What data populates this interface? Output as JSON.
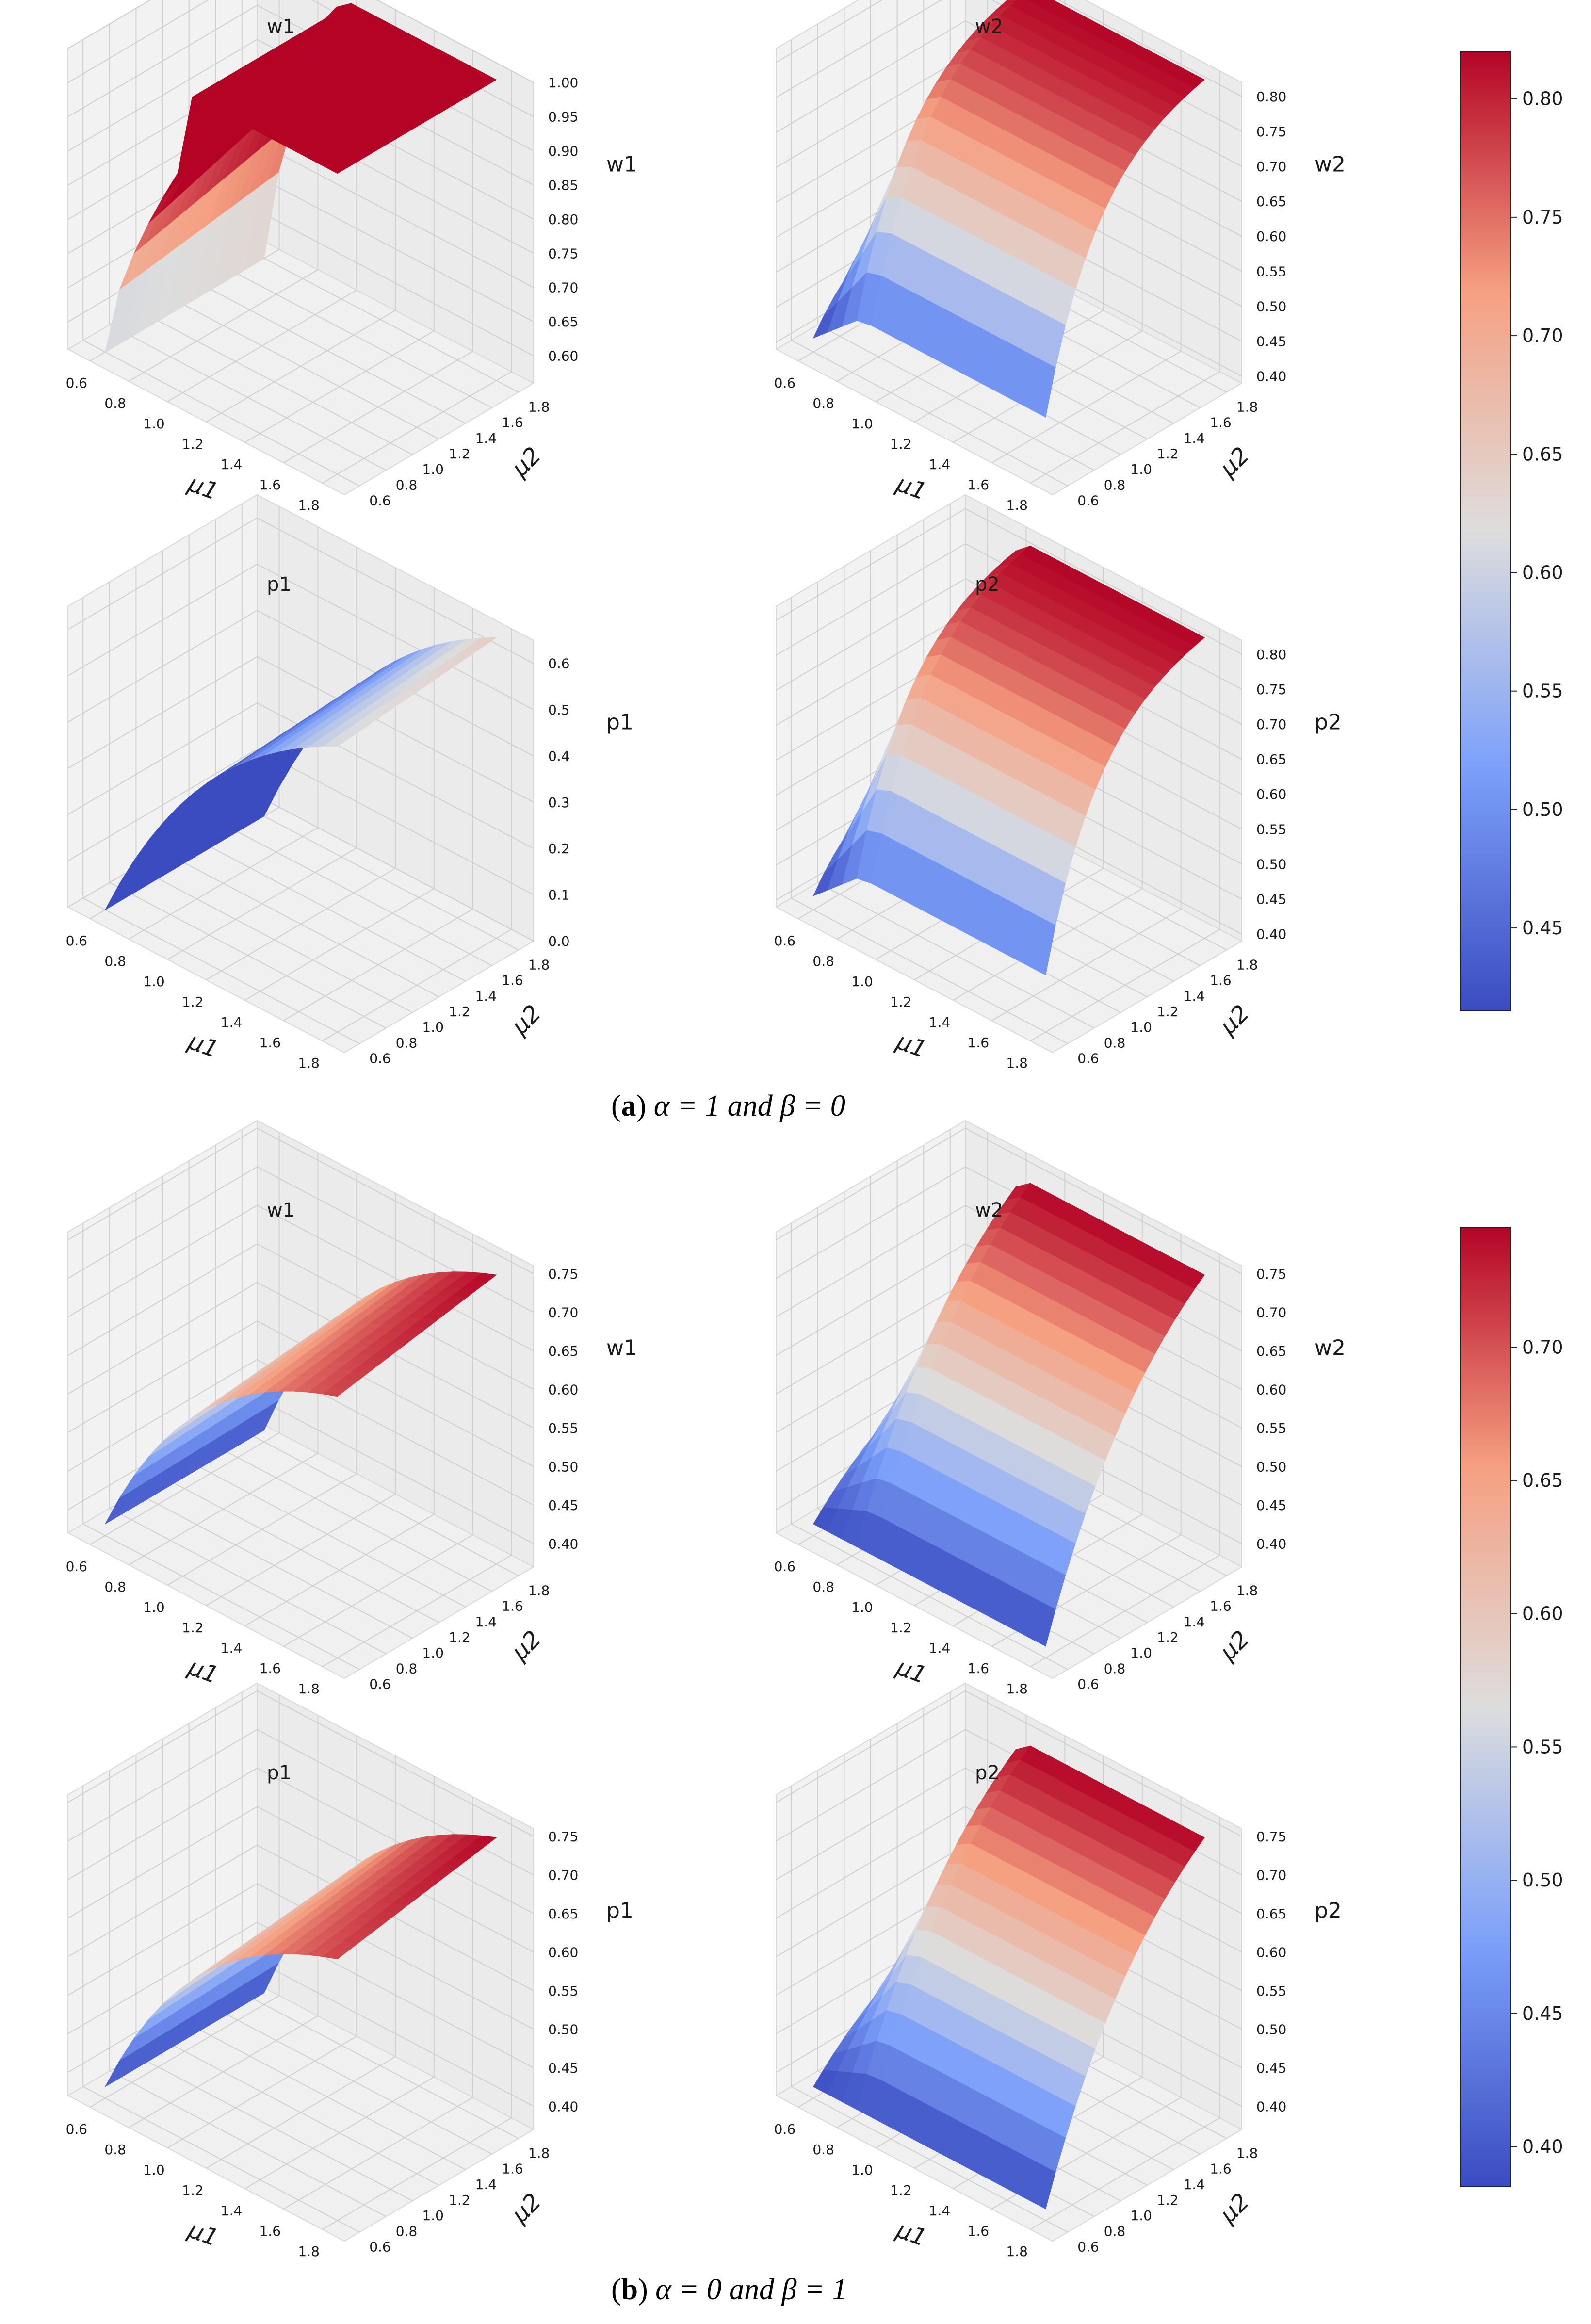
{
  "colormap": {
    "low": "#3b4cc0",
    "mid": "#dddddd",
    "high": "#b40426"
  },
  "panels": [
    {
      "id": "a",
      "caption": {
        "letter": "a",
        "math": "α = 1 and β = 0"
      },
      "colorbar": {
        "min": 0.415,
        "max": 0.82,
        "ticks": [
          "0.45",
          "0.50",
          "0.55",
          "0.60",
          "0.65",
          "0.70",
          "0.75",
          "0.80"
        ],
        "tick_values": [
          0.45,
          0.5,
          0.55,
          0.6,
          0.65,
          0.7,
          0.75,
          0.8
        ]
      }
    },
    {
      "id": "b",
      "caption": {
        "letter": "b",
        "math": "α = 0 and β = 1"
      },
      "colorbar": {
        "min": 0.385,
        "max": 0.745,
        "ticks": [
          "0.40",
          "0.45",
          "0.50",
          "0.55",
          "0.60",
          "0.65",
          "0.70"
        ],
        "tick_values": [
          0.4,
          0.45,
          0.5,
          0.55,
          0.6,
          0.65,
          0.7
        ]
      }
    }
  ],
  "chart_data": [
    {
      "type": "surface3d",
      "panel": "a",
      "title": "w1",
      "zlabel": "w1",
      "xlabel": "μ1",
      "ylabel": "μ2",
      "xticks": [
        "0.6",
        "0.8",
        "1.0",
        "1.2",
        "1.4",
        "1.6",
        "1.8"
      ],
      "yticks": [
        "0.6",
        "0.8",
        "1.0",
        "1.2",
        "1.4",
        "1.6",
        "1.8"
      ],
      "zticks": [
        "0.60",
        "0.65",
        "0.70",
        "0.75",
        "0.80",
        "0.85",
        "0.90",
        "0.95",
        "1.00"
      ],
      "zlim": [
        0.56,
        1.0
      ],
      "surface": {
        "form": "plateau",
        "min": 0.56,
        "max": 1.0,
        "k": 4.5,
        "y_effect": 0.0,
        "x_knee": 0.33
      }
    },
    {
      "type": "surface3d",
      "panel": "a",
      "title": "w2",
      "zlabel": "w2",
      "xlabel": "μ1",
      "ylabel": "μ2",
      "xticks": [
        "0.6",
        "0.8",
        "1.0",
        "1.2",
        "1.4",
        "1.6",
        "1.8"
      ],
      "yticks": [
        "0.6",
        "0.8",
        "1.0",
        "1.2",
        "1.4",
        "1.6",
        "1.8"
      ],
      "zticks": [
        "0.40",
        "0.45",
        "0.50",
        "0.55",
        "0.60",
        "0.65",
        "0.70",
        "0.75",
        "0.80"
      ],
      "zlim": [
        0.39,
        0.82
      ],
      "surface": {
        "form": "rise_y",
        "min": 0.41,
        "max": 0.82,
        "k": 3.0,
        "y_effect": 0.85,
        "x_knee": 0.2
      }
    },
    {
      "type": "surface3d",
      "panel": "a",
      "title": "p1",
      "zlabel": "p1",
      "xlabel": "μ1",
      "ylabel": "μ2",
      "xticks": [
        "0.6",
        "0.8",
        "1.0",
        "1.2",
        "1.4",
        "1.6",
        "1.8"
      ],
      "yticks": [
        "0.6",
        "0.8",
        "1.0",
        "1.2",
        "1.4",
        "1.6",
        "1.8"
      ],
      "zticks": [
        "0.0",
        "0.1",
        "0.2",
        "0.3",
        "0.4",
        "0.5",
        "0.6"
      ],
      "zlim": [
        0.0,
        0.65
      ],
      "surface": {
        "form": "ramp_x",
        "min": 0.0,
        "max": 0.65,
        "k": 1.6,
        "y_effect": 0.05,
        "x_knee": 0.2
      }
    },
    {
      "type": "surface3d",
      "panel": "a",
      "title": "p2",
      "zlabel": "p2",
      "xlabel": "μ1",
      "ylabel": "μ2",
      "xticks": [
        "0.6",
        "0.8",
        "1.0",
        "1.2",
        "1.4",
        "1.6",
        "1.8"
      ],
      "yticks": [
        "0.6",
        "0.8",
        "1.0",
        "1.2",
        "1.4",
        "1.6",
        "1.8"
      ],
      "zticks": [
        "0.40",
        "0.45",
        "0.50",
        "0.55",
        "0.60",
        "0.65",
        "0.70",
        "0.75",
        "0.80"
      ],
      "zlim": [
        0.39,
        0.82
      ],
      "surface": {
        "form": "rise_y",
        "min": 0.41,
        "max": 0.82,
        "k": 3.0,
        "y_effect": 0.85,
        "x_knee": 0.2
      }
    },
    {
      "type": "surface3d",
      "panel": "b",
      "title": "w1",
      "zlabel": "w1",
      "xlabel": "μ1",
      "ylabel": "μ2",
      "xticks": [
        "0.6",
        "0.8",
        "1.0",
        "1.2",
        "1.4",
        "1.6",
        "1.8"
      ],
      "yticks": [
        "0.6",
        "0.8",
        "1.0",
        "1.2",
        "1.4",
        "1.6",
        "1.8"
      ],
      "zticks": [
        "0.40",
        "0.45",
        "0.50",
        "0.55",
        "0.60",
        "0.65",
        "0.70",
        "0.75"
      ],
      "zlim": [
        0.37,
        0.76
      ],
      "surface": {
        "form": "ramp_x",
        "min": 0.385,
        "max": 0.745,
        "k": 2.0,
        "y_effect": 0.1,
        "x_knee": 0.2
      }
    },
    {
      "type": "surface3d",
      "panel": "b",
      "title": "w2",
      "zlabel": "w2",
      "xlabel": "μ1",
      "ylabel": "μ2",
      "xticks": [
        "0.6",
        "0.8",
        "1.0",
        "1.2",
        "1.4",
        "1.6",
        "1.8"
      ],
      "yticks": [
        "0.6",
        "0.8",
        "1.0",
        "1.2",
        "1.4",
        "1.6",
        "1.8"
      ],
      "zticks": [
        "0.40",
        "0.45",
        "0.50",
        "0.55",
        "0.60",
        "0.65",
        "0.70",
        "0.75"
      ],
      "zlim": [
        0.37,
        0.76
      ],
      "surface": {
        "form": "rise_y",
        "min": 0.385,
        "max": 0.745,
        "k": 1.4,
        "y_effect": 1.0,
        "x_knee": 0.2
      }
    },
    {
      "type": "surface3d",
      "panel": "b",
      "title": "p1",
      "zlabel": "p1",
      "xlabel": "μ1",
      "ylabel": "μ2",
      "xticks": [
        "0.6",
        "0.8",
        "1.0",
        "1.2",
        "1.4",
        "1.6",
        "1.8"
      ],
      "yticks": [
        "0.6",
        "0.8",
        "1.0",
        "1.2",
        "1.4",
        "1.6",
        "1.8"
      ],
      "zticks": [
        "0.40",
        "0.45",
        "0.50",
        "0.55",
        "0.60",
        "0.65",
        "0.70",
        "0.75"
      ],
      "zlim": [
        0.37,
        0.76
      ],
      "surface": {
        "form": "ramp_x",
        "min": 0.385,
        "max": 0.745,
        "k": 2.0,
        "y_effect": 0.1,
        "x_knee": 0.2
      }
    },
    {
      "type": "surface3d",
      "panel": "b",
      "title": "p2",
      "zlabel": "p2",
      "xlabel": "μ1",
      "ylabel": "μ2",
      "xticks": [
        "0.6",
        "0.8",
        "1.0",
        "1.2",
        "1.4",
        "1.6",
        "1.8"
      ],
      "yticks": [
        "0.6",
        "0.8",
        "1.0",
        "1.2",
        "1.4",
        "1.6",
        "1.8"
      ],
      "zticks": [
        "0.40",
        "0.45",
        "0.50",
        "0.55",
        "0.60",
        "0.65",
        "0.70",
        "0.75"
      ],
      "zlim": [
        0.37,
        0.76
      ],
      "surface": {
        "form": "rise_y",
        "min": 0.385,
        "max": 0.745,
        "k": 1.4,
        "y_effect": 1.0,
        "x_knee": 0.2
      }
    }
  ]
}
